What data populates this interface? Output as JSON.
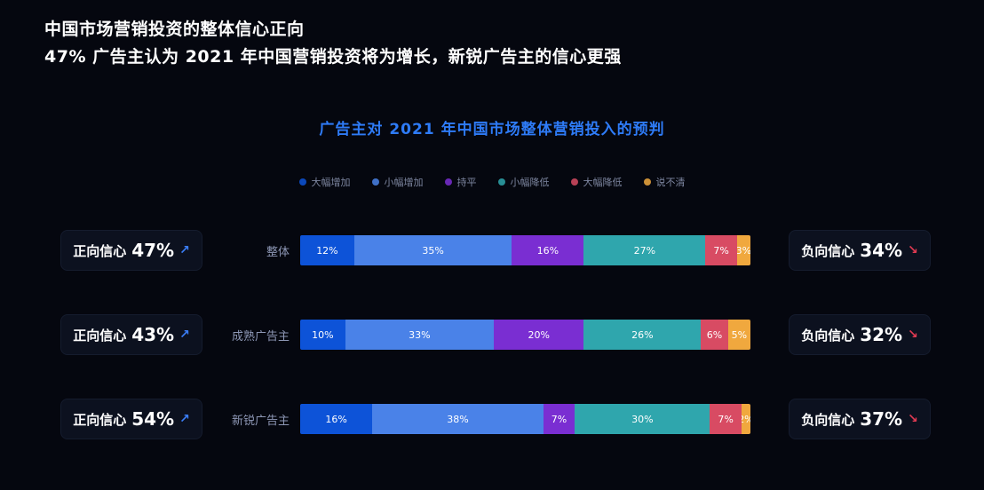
{
  "page": {
    "background": "#05070f",
    "accent_blue": "#2e7bf7",
    "accent_red": "#e03a52"
  },
  "header": {
    "line1": "中国市场营销投资的整体信心正向",
    "line2": "47% 广告主认为 2021 年中国营销投资将为增长，新锐广告主的信心更强"
  },
  "chart": {
    "title": "广告主对 2021 年中国市场整体营销投入的预判",
    "title_color": "#2e7bf7"
  },
  "chart_data": {
    "type": "bar",
    "stacked": true,
    "orientation": "horizontal",
    "title": "广告主对 2021 年中国市场整体营销投入的预判",
    "categories": [
      "整体",
      "成熟广告主",
      "新锐广告主"
    ],
    "unit": "%",
    "xlim": [
      0,
      100
    ],
    "legend_position": "top",
    "series": [
      {
        "name": "大幅增加",
        "color": "#0d53d8",
        "values": [
          12,
          10,
          16
        ]
      },
      {
        "name": "小幅增加",
        "color": "#4a82e8",
        "values": [
          35,
          33,
          38
        ]
      },
      {
        "name": "持平",
        "color": "#7a2ed2",
        "values": [
          16,
          20,
          7
        ]
      },
      {
        "name": "小幅降低",
        "color": "#2fa6ad",
        "values": [
          27,
          26,
          30
        ]
      },
      {
        "name": "大幅降低",
        "color": "#d84b63",
        "values": [
          7,
          6,
          7
        ]
      },
      {
        "name": "说不清",
        "color": "#f0a83e",
        "values": [
          3,
          5,
          2
        ]
      }
    ]
  },
  "cards": {
    "positive": [
      {
        "label": "正向信心",
        "value": "47%"
      },
      {
        "label": "正向信心",
        "value": "43%"
      },
      {
        "label": "正向信心",
        "value": "54%"
      }
    ],
    "negative": [
      {
        "label": "负向信心",
        "value": "34%"
      },
      {
        "label": "负向信心",
        "value": "32%"
      },
      {
        "label": "负向信心",
        "value": "37%"
      }
    ],
    "up_arrow": "↗",
    "down_arrow": "↘",
    "up_color": "#3b7ef8",
    "down_color": "#e03a52"
  }
}
